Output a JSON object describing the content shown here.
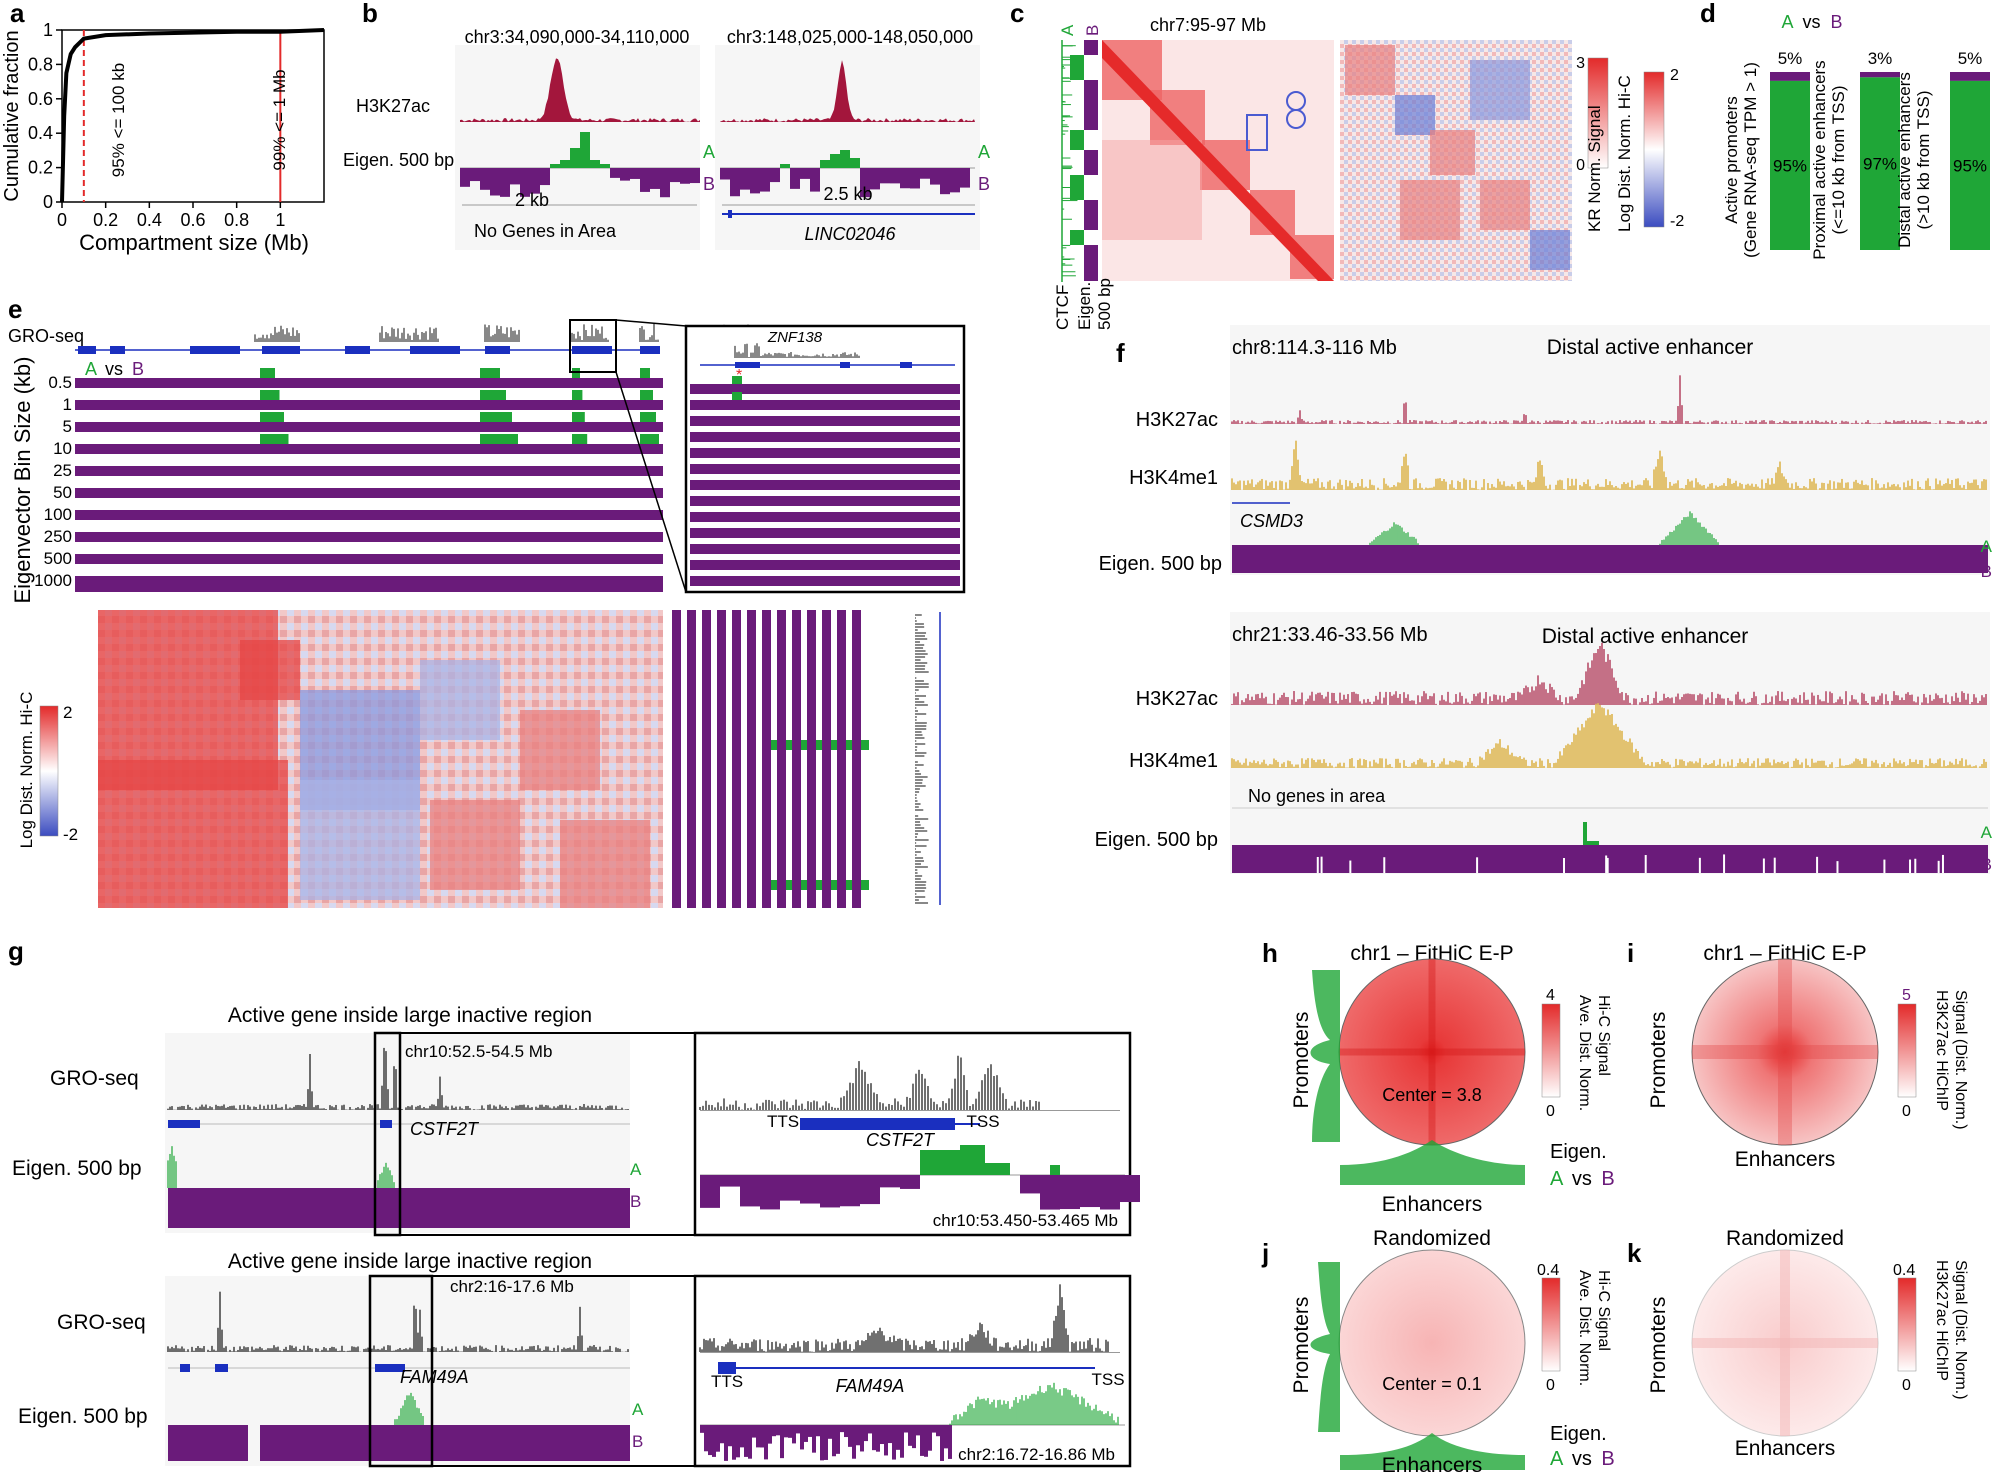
{
  "panel_letters": [
    "a",
    "b",
    "c",
    "d",
    "e",
    "f",
    "g",
    "h",
    "i",
    "j",
    "k"
  ],
  "colors": {
    "red": "#e32a2a",
    "h3k27ac": "#a3163c",
    "h3k4me1": "#d4a017",
    "compA": "#1fa637",
    "compB": "#6a1b7a",
    "heatBlue": "#3b4cc0",
    "gene": "#1a2fbf"
  },
  "a": {
    "ylabel": "Cumulative fraction",
    "xlabel": "Compartment size (Mb)",
    "anno1": "95% <= 100 kb",
    "anno2": "99% <= 1 Mb",
    "chart_data": {
      "type": "line",
      "x": [
        0.0,
        0.01,
        0.02,
        0.04,
        0.06,
        0.1,
        0.2,
        0.4,
        0.6,
        0.8,
        1.0,
        1.2
      ],
      "y": [
        0.0,
        0.5,
        0.75,
        0.86,
        0.9,
        0.95,
        0.97,
        0.98,
        0.985,
        0.99,
        0.99,
        1.0
      ],
      "xticks": [
        "0",
        "0.2",
        "0.4",
        "0.6",
        "0.8",
        "1"
      ],
      "yticks": [
        "0",
        "0.2",
        "0.4",
        "0.6",
        "0.8",
        "1"
      ],
      "xlim": [
        0,
        1.2
      ],
      "ylim": [
        0,
        1
      ],
      "vlines": [
        0.1,
        1.0
      ]
    }
  },
  "b": {
    "region1": "chr3:34,090,000-34,110,000",
    "region2": "chr3:148,025,000-148,050,000",
    "track1": "H3K27ac",
    "track2": "Eigen. 500 bp",
    "scale1": "2 kb",
    "scale2": "2.5 kb",
    "note1": "No Genes in Area",
    "gene2": "LINC02046",
    "A": "A",
    "B": "B"
  },
  "c": {
    "region": "chr7:95-97 Mb",
    "ctcf": "CTCF",
    "eigen": "Eigen.",
    "eigen_bin": "500 bp",
    "A": "A",
    "B": "B",
    "kr_label": "KR Norm. Signal",
    "kr_max": "3",
    "kr_min": "0",
    "ld_label": "Log Dist. Norm. Hi-C",
    "ld_max": "2",
    "ld_min": "-2"
  },
  "d": {
    "title_a": "A",
    "title_vs": "vs",
    "title_b": "B",
    "chart_data": {
      "type": "bar",
      "categories": [
        "Active promoters (Gene RNA-seq TPM > 1)",
        "Proximal active enhancers (<=10 kb from TSS)",
        "Distal active enhancers (>10 kb from TSS)"
      ],
      "series": [
        {
          "name": "A",
          "values": [
            95,
            97,
            95
          ]
        },
        {
          "name": "B",
          "values": [
            5,
            3,
            5
          ]
        }
      ],
      "labels_A": [
        "95%",
        "97%",
        "95%"
      ],
      "labels_B": [
        "5%",
        "3%",
        "5%"
      ]
    },
    "cat1a": "Active promoters",
    "cat1b": "(Gene RNA-seq TPM > 1)",
    "cat2a": "Proximal active enhancers",
    "cat2b": "(<=10 kb from TSS)",
    "cat3a": "Distal active enhancers",
    "cat3b": "(>10 kb from TSS)"
  },
  "e": {
    "groseq": "GRO-seq",
    "A": "A",
    "vs": "vs",
    "B": "B",
    "ylabel": "Eigenvector Bin Size (kb)",
    "bins": [
      "0.5",
      "1",
      "5",
      "10",
      "25",
      "50",
      "100",
      "250",
      "500",
      "1000"
    ],
    "gene": "ZNF138",
    "colorbar": "Log Dist. Norm. Hi-C",
    "cb_max": "2",
    "cb_min": "-2"
  },
  "f": {
    "region1": "chr8:114.3-116 Mb",
    "title1": "Distal active enhancer",
    "region2": "chr21:33.46-33.56 Mb",
    "title2": "Distal active enhancer",
    "h3k27ac": "H3K27ac",
    "h3k4me1": "H3K4me1",
    "eigen": "Eigen. 500 bp",
    "gene1": "CSMD3",
    "nogenes": "No genes in area",
    "A": "A",
    "B": "B"
  },
  "g": {
    "title1": "Active gene inside large inactive region",
    "title2": "Active gene inside large inactive region",
    "groseq": "GRO-seq",
    "eigen": "Eigen. 500 bp",
    "region1": "chr10:52.5-54.5 Mb",
    "gene1": "CSTF2T",
    "tts": "TTS",
    "tss": "TSS",
    "zoom1": "chr10:53.450-53.465 Mb",
    "region2": "chr2:16-17.6 Mb",
    "gene2": "FAM49A",
    "zoom2": "chr2:16.72-16.86 Mb",
    "A": "A",
    "B": "B"
  },
  "h": {
    "title": "chr1 – FitHiC E-P",
    "center": "Center = 3.8",
    "cb_label1": "Ave. Dist. Norm.",
    "cb_label2": "Hi-C Signal",
    "cb_max": "4",
    "cb_min": "0",
    "promoters": "Promoters",
    "enhancers": "Enhancers",
    "eigen": "Eigen.",
    "A": "A",
    "vs": "vs",
    "B": "B"
  },
  "i": {
    "title": "chr1 – FitHiC E-P",
    "cb_label1": "H3K27ac HiChIP",
    "cb_label2": "Signal (Dist. Norm.)",
    "cb_max": "5",
    "cb_min": "0",
    "promoters": "Promoters",
    "enhancers": "Enhancers"
  },
  "j": {
    "title": "Randomized",
    "center": "Center = 0.1",
    "cb_label1": "Ave. Dist. Norm.",
    "cb_label2": "Hi-C Signal",
    "cb_max": "0.4",
    "cb_min": "0",
    "promoters": "Promoters",
    "enhancers": "Enhancers",
    "eigen": "Eigen.",
    "A": "A",
    "vs": "vs",
    "B": "B"
  },
  "k": {
    "title": "Randomized",
    "cb_label1": "H3K27ac HiChIP",
    "cb_label2": "Signal (Dist. Norm.)",
    "cb_max": "0.4",
    "cb_min": "0",
    "promoters": "Promoters",
    "enhancers": "Enhancers"
  }
}
